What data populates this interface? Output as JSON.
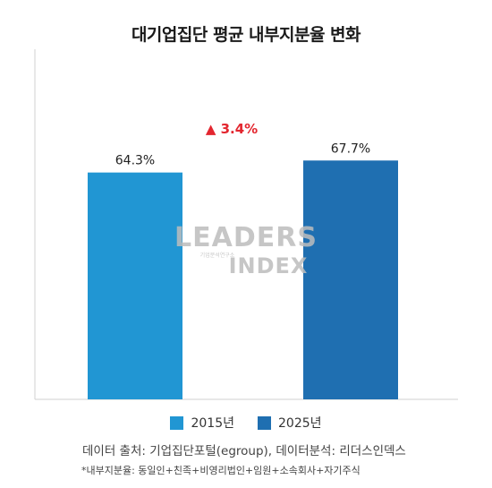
{
  "title": "대기업집단 평균 내부지분율 변화",
  "chart_data": {
    "type": "bar",
    "categories": [
      "2015년",
      "2025년"
    ],
    "values": [
      64.3,
      67.7
    ],
    "value_labels": [
      "64.3%",
      "67.7%"
    ],
    "colors": [
      "#2196d3",
      "#1f6fb1"
    ],
    "annotation": "▲ 3.4%",
    "annotation_color": "#e3262f",
    "ylim": [
      0,
      100
    ],
    "grid": false,
    "legend_position": "bottom"
  },
  "legend": [
    {
      "label": "2015년",
      "color": "#2196d3"
    },
    {
      "label": "2025년",
      "color": "#1f6fb1"
    }
  ],
  "watermark": {
    "line1": "LEADERS",
    "line2": "INDEX",
    "sub": "기업분석연구소"
  },
  "source": "데이터 출처: 기업집단포털(egroup), 데이터분석: 리더스인덱스",
  "note": "*내부지분율: 동일인+친족+비영리법인+임원+소속회사+자기주식"
}
